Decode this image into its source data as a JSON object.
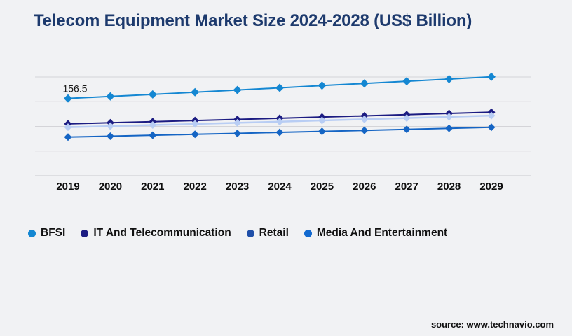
{
  "title": "Telecom Equipment Market Size 2024-2028 (US$ Billion)",
  "source": "source: www.technavio.com",
  "chart_data": {
    "type": "line",
    "title": "Telecom Equipment Market Size 2024-2028 (US$ Billion)",
    "categories": [
      "2019",
      "2020",
      "2021",
      "2022",
      "2023",
      "2024",
      "2025",
      "2026",
      "2027",
      "2028",
      "2029"
    ],
    "xlabel": "",
    "ylabel": "",
    "ylim": [
      0,
      225
    ],
    "y_gridlines": [
      0,
      50,
      100,
      150,
      200
    ],
    "y_tick_labels_visible": false,
    "grid": "horizontal",
    "legend_position": "bottom",
    "marker_shape": "diamond",
    "annotation": {
      "text": "156.5",
      "series_index": 0,
      "point_index": 0
    },
    "series": [
      {
        "name": "BFSI",
        "color": "#1487d2",
        "legend_color": "#1487d2",
        "values": [
          156.5,
          160.6,
          164.8,
          169.1,
          173.5,
          178.0,
          182.6,
          186.9,
          191.3,
          195.8,
          200.4
        ]
      },
      {
        "name": "IT And Telecommunication",
        "color": "#1c1c82",
        "legend_color": "#1c1c82",
        "values": [
          105.2,
          107.4,
          109.6,
          111.9,
          114.2,
          116.5,
          118.9,
          121.3,
          123.8,
          126.3,
          128.8
        ]
      },
      {
        "name": "Retail",
        "color": "#b8cdf4",
        "legend_color": "#1f4fa8",
        "values": [
          98.4,
          100.6,
          102.8,
          105.0,
          107.3,
          109.6,
          112.0,
          114.4,
          116.8,
          119.3,
          121.8
        ]
      },
      {
        "name": "Media And Entertainment",
        "color": "#1565c4",
        "legend_color": "#1269cf",
        "values": [
          78.4,
          80.2,
          82.1,
          84.0,
          85.9,
          87.9,
          89.9,
          91.9,
          94.0,
          96.1,
          98.2
        ]
      }
    ]
  }
}
